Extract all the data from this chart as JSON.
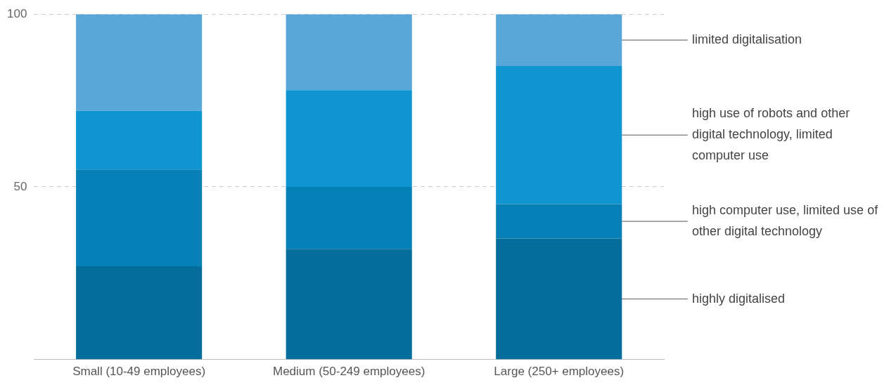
{
  "chart_data": {
    "type": "bar",
    "stacked": true,
    "categories": [
      "Small (10-49 employees)",
      "Medium (50-249 employees)",
      "Large (250+ employees)"
    ],
    "series": [
      {
        "name": "highly digitalised",
        "color": "#036d9c",
        "values": [
          27,
          32,
          35
        ]
      },
      {
        "name": "high computer use, limited use of other digital technology",
        "color": "#0780b8",
        "values": [
          28,
          18,
          10
        ]
      },
      {
        "name": "high use of robots and other digital technology, limited computer use",
        "color": "#0f96d1",
        "values": [
          17,
          28,
          40
        ]
      },
      {
        "name": "limited digitalisation",
        "color": "#59a7d9",
        "values": [
          28,
          22,
          15
        ]
      }
    ],
    "ylim": [
      0,
      100
    ],
    "yticks": [
      50,
      100
    ],
    "grid": "y",
    "legend": false
  }
}
